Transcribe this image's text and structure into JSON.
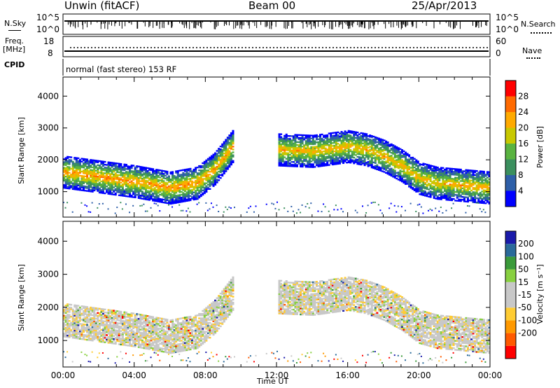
{
  "header": {
    "station": "Unwin (fitACF)",
    "beam": "Beam 00",
    "date": "25/Apr/2013"
  },
  "strip": {
    "nsky_label": "N.Sky",
    "nsky_ticks": [
      "10^5",
      "10^0"
    ],
    "nsearch_label": "N.Search",
    "nsearch_ticks": [
      "10^5",
      "10^0"
    ],
    "freq_label": "Freq.",
    "freq_unit": "[MHz]",
    "freq_ticks": [
      "18",
      "8"
    ],
    "nave_label": "Nave",
    "nave_ticks": [
      "60",
      "0"
    ],
    "cpid_label": "CPID",
    "cpid_text": "normal (fast stereo) 153 RF"
  },
  "colors": {
    "power_scale": [
      "#0000ff",
      "#2e5fa8",
      "#3b8f5e",
      "#59b340",
      "#c8c800",
      "#ffaa00",
      "#ff6a00",
      "#ff0000"
    ],
    "velocity_scale": [
      "#ff0000",
      "#ff5a00",
      "#ff9900",
      "#ffcc33",
      "#c8c8c8",
      "#c8c8c8",
      "#88d040",
      "#3a9a3a",
      "#2a6a9a",
      "#1a1aaa"
    ],
    "ground_scatter": "#c0c0c0"
  },
  "chart_data": [
    {
      "type": "heatmap",
      "name": "power",
      "ylabel": "Slant Range [km]",
      "xlim": [
        0,
        24
      ],
      "ylim": [
        200,
        4600
      ],
      "yticks": [
        "4000",
        "3000",
        "2000",
        "1000"
      ],
      "colorbar_label": "Power [dB]",
      "colorbar_ticks": [
        "28",
        "24",
        "20",
        "16",
        "12",
        "8",
        "4"
      ],
      "colorbar_range": [
        0,
        32
      ],
      "echo_bands": [
        {
          "t": [
            0,
            2,
            4,
            6,
            7.5,
            8.5,
            9.5
          ],
          "range": [
            1600,
            1450,
            1300,
            1100,
            1250,
            1700,
            2400
          ],
          "power": 24
        },
        {
          "t": [
            12,
            14,
            16,
            17,
            18,
            19,
            20,
            21,
            22,
            23,
            24
          ],
          "range": [
            2300,
            2250,
            2400,
            2300,
            2100,
            1800,
            1400,
            1250,
            1200,
            1150,
            1100
          ],
          "power": 22
        }
      ]
    },
    {
      "type": "heatmap",
      "name": "velocity",
      "ylabel": "Slant Range [km]",
      "xlabel": "Time UT",
      "xlim": [
        0,
        24
      ],
      "ylim": [
        200,
        4600
      ],
      "xticks": [
        "00:00",
        "04:00",
        "08:00",
        "12:00",
        "16:00",
        "20:00",
        "00:00"
      ],
      "yticks": [
        "4000",
        "3000",
        "2000",
        "1000"
      ],
      "colorbar_label": "Velocity [m s⁻¹]",
      "colorbar_ticks": [
        "200",
        "100",
        "50",
        "15",
        "-15",
        "-50",
        "-100",
        "-200"
      ]
    }
  ]
}
